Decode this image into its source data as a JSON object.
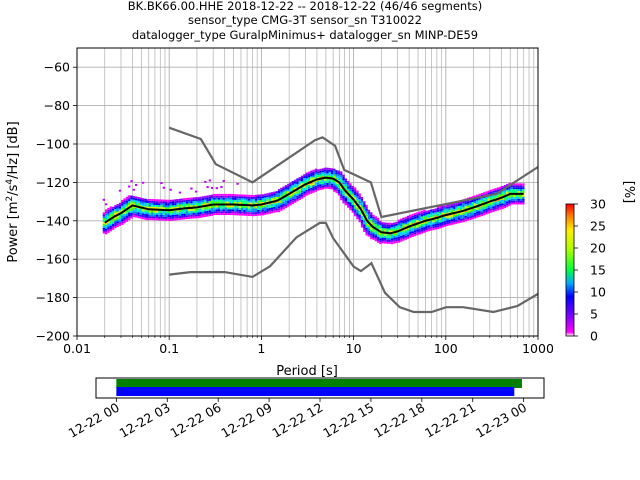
{
  "title_lines": [
    "BK.BK66.00.HHE   2018-12-22 -- 2018-12-22  (46/46 segments)",
    "sensor_type CMG-3T sensor_sn T310022",
    "datalogger_type GuralpMinimus+ datalogger_sn MINP-DE59"
  ],
  "chart_data": [
    {
      "type": "line",
      "name": "ppsd",
      "xlabel": "Period [s]",
      "ylabel": "Power [m²/s⁴/Hz] [dB]",
      "ylabel_parts": {
        "pre": "Power [m",
        "sup1": "2",
        "mid": "/s",
        "sup2": "4",
        "post": "/Hz] [dB]"
      },
      "xscale": "log",
      "xlim": [
        0.01,
        1000
      ],
      "ylim": [
        -200,
        -50
      ],
      "grid": true,
      "x_ticks": [
        0.01,
        0.1,
        1,
        10,
        100,
        1000
      ],
      "x_tick_labels": [
        "0.01",
        "0.1",
        "1",
        "10",
        "100",
        "1000"
      ],
      "y_ticks": [
        -200,
        -180,
        -160,
        -140,
        -120,
        -100,
        -80,
        -60
      ],
      "y_tick_labels": [
        "−200",
        "−180",
        "−160",
        "−140",
        "−120",
        "−100",
        "−80",
        "−60"
      ],
      "series": [
        {
          "role": "nhnm",
          "color": "#666666",
          "x": [
            0.1,
            0.22,
            0.32,
            0.8,
            3.8,
            4.6,
            6.3,
            7.9,
            15.4,
            20,
            354.8,
            1000
          ],
          "y": [
            -91.5,
            -97.4,
            -110.5,
            -120,
            -98,
            -96.5,
            -101,
            -113.5,
            -120,
            -138,
            -126,
            -112
          ]
        },
        {
          "role": "nlnm",
          "color": "#666666",
          "x": [
            0.1,
            0.17,
            0.4,
            0.8,
            1.24,
            2.4,
            4.3,
            5,
            6,
            10,
            12,
            15.6,
            21.9,
            31.6,
            45,
            70,
            101,
            154,
            328,
            600,
            1000
          ],
          "y": [
            -168,
            -166.7,
            -166.7,
            -169.2,
            -163.7,
            -148.6,
            -141.1,
            -141.1,
            -149,
            -163.8,
            -166.2,
            -162.1,
            -177.5,
            -185,
            -187.5,
            -187.5,
            -185,
            -185,
            -187.5,
            -184.4,
            -178
          ]
        },
        {
          "role": "mean",
          "color": "#000000",
          "x": [
            0.02,
            0.025,
            0.03,
            0.04,
            0.06,
            0.1,
            0.15,
            0.2,
            0.3,
            0.5,
            0.8,
            1,
            1.5,
            2,
            3,
            4,
            5,
            6,
            7,
            8,
            10,
            12,
            14,
            16,
            20,
            25,
            30,
            40,
            60,
            80,
            100,
            150,
            200,
            300,
            400,
            500,
            700
          ],
          "y": [
            -141,
            -138,
            -136,
            -132,
            -134,
            -134.5,
            -133.5,
            -133,
            -131.5,
            -131.5,
            -132,
            -131.5,
            -129.5,
            -126,
            -121,
            -118.5,
            -117.5,
            -118,
            -120,
            -124,
            -129,
            -134,
            -140,
            -143,
            -146,
            -146.5,
            -145.5,
            -143,
            -140,
            -138.5,
            -137,
            -135,
            -133,
            -130,
            -128,
            -126,
            -126
          ]
        }
      ],
      "colorbar": {
        "label": "[%]",
        "ticks": [
          0,
          5,
          10,
          15,
          20,
          25,
          30
        ],
        "range": [
          0,
          30
        ],
        "colormap": "pqlx"
      }
    },
    {
      "type": "bar",
      "name": "data-availability",
      "x_tick_labels": [
        "12-22 00",
        "12-22 03",
        "12-22 06",
        "12-22 09",
        "12-22 12",
        "12-22 15",
        "12-22 18",
        "12-22 21",
        "12-23 00"
      ],
      "x_tick_hours": [
        0,
        3,
        6,
        9,
        12,
        15,
        18,
        21,
        24
      ],
      "xlim_hours": [
        -1.2,
        25.2
      ],
      "series": [
        {
          "color": "#008000",
          "start_hour": 0,
          "end_hour": 23.9
        },
        {
          "color": "#0000ff",
          "start_hour": 0,
          "end_hour": 23.45
        }
      ]
    }
  ]
}
